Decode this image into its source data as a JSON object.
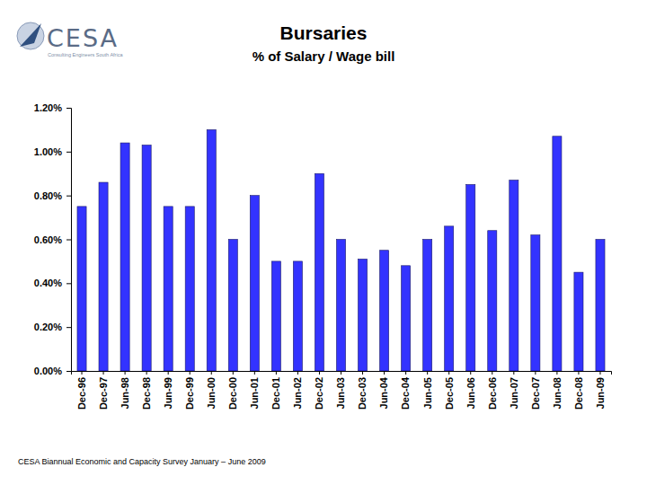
{
  "chart_data": {
    "type": "bar",
    "title": "Bursaries",
    "subtitle": "% of Salary / Wage bill",
    "logo_text": "CESA",
    "logo_tagline": "Consulting Engineers South Africa",
    "footer": "CESA Biannual Economic and Capacity Survey January – June 2009",
    "categories": [
      "Dec-96",
      "Dec-97",
      "Jun-98",
      "Dec-98",
      "Jun-99",
      "Dec-99",
      "Jun-00",
      "Dec-00",
      "Jun-01",
      "Dec-01",
      "Jun-02",
      "Dec-02",
      "Jun-03",
      "Dec-03",
      "Jun-04",
      "Dec-04",
      "Jun-05",
      "Dec-05",
      "Jun-06",
      "Dec-06",
      "Jun-07",
      "Dec-07",
      "Jun-08",
      "Dec-08",
      "Jun-09"
    ],
    "values": [
      0.75,
      0.86,
      1.04,
      1.03,
      0.75,
      0.75,
      1.1,
      0.6,
      0.8,
      0.5,
      0.5,
      0.9,
      0.6,
      0.51,
      0.55,
      0.48,
      0.6,
      0.66,
      0.85,
      0.64,
      0.87,
      0.62,
      1.07,
      0.45,
      0.6
    ],
    "color": "#3333ff",
    "ylim": [
      0,
      1.2
    ],
    "yticks": [
      {
        "value": 0,
        "label": "0.00%"
      },
      {
        "value": 0.2,
        "label": "0.20%"
      },
      {
        "value": 0.4,
        "label": "0.40%"
      },
      {
        "value": 0.6,
        "label": "0.60%"
      },
      {
        "value": 0.8,
        "label": "0.80%"
      },
      {
        "value": 1.0,
        "label": "1.00%"
      },
      {
        "value": 1.2,
        "label": "1.20%"
      }
    ],
    "grid": false
  }
}
